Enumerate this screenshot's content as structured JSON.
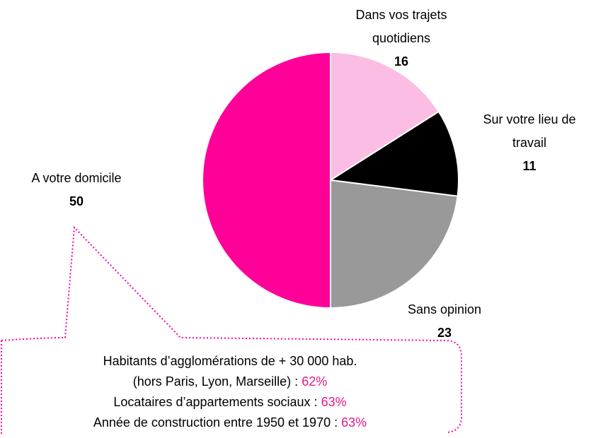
{
  "chart_data": {
    "type": "pie",
    "categories": [
      "Dans vos trajets quotidiens",
      "Sur votre lieu de travail",
      "Sans opinion",
      "A votre domicile"
    ],
    "values": [
      16,
      11,
      23,
      50
    ],
    "colors": [
      "#fbbde3",
      "#000000",
      "#999999",
      "#ff0099"
    ],
    "annotation": {
      "lines": [
        {
          "text": "Habitants d’agglomérations de + 30 000 hab."
        },
        {
          "text": "(hors Paris, Lyon, Marseille) :",
          "highlight": "62%"
        },
        {
          "text": "Locataires d’appartements sociaux :",
          "highlight": "63%"
        },
        {
          "text": "Année de construction entre 1950 et 1970 :",
          "highlight": "63%"
        }
      ]
    }
  }
}
